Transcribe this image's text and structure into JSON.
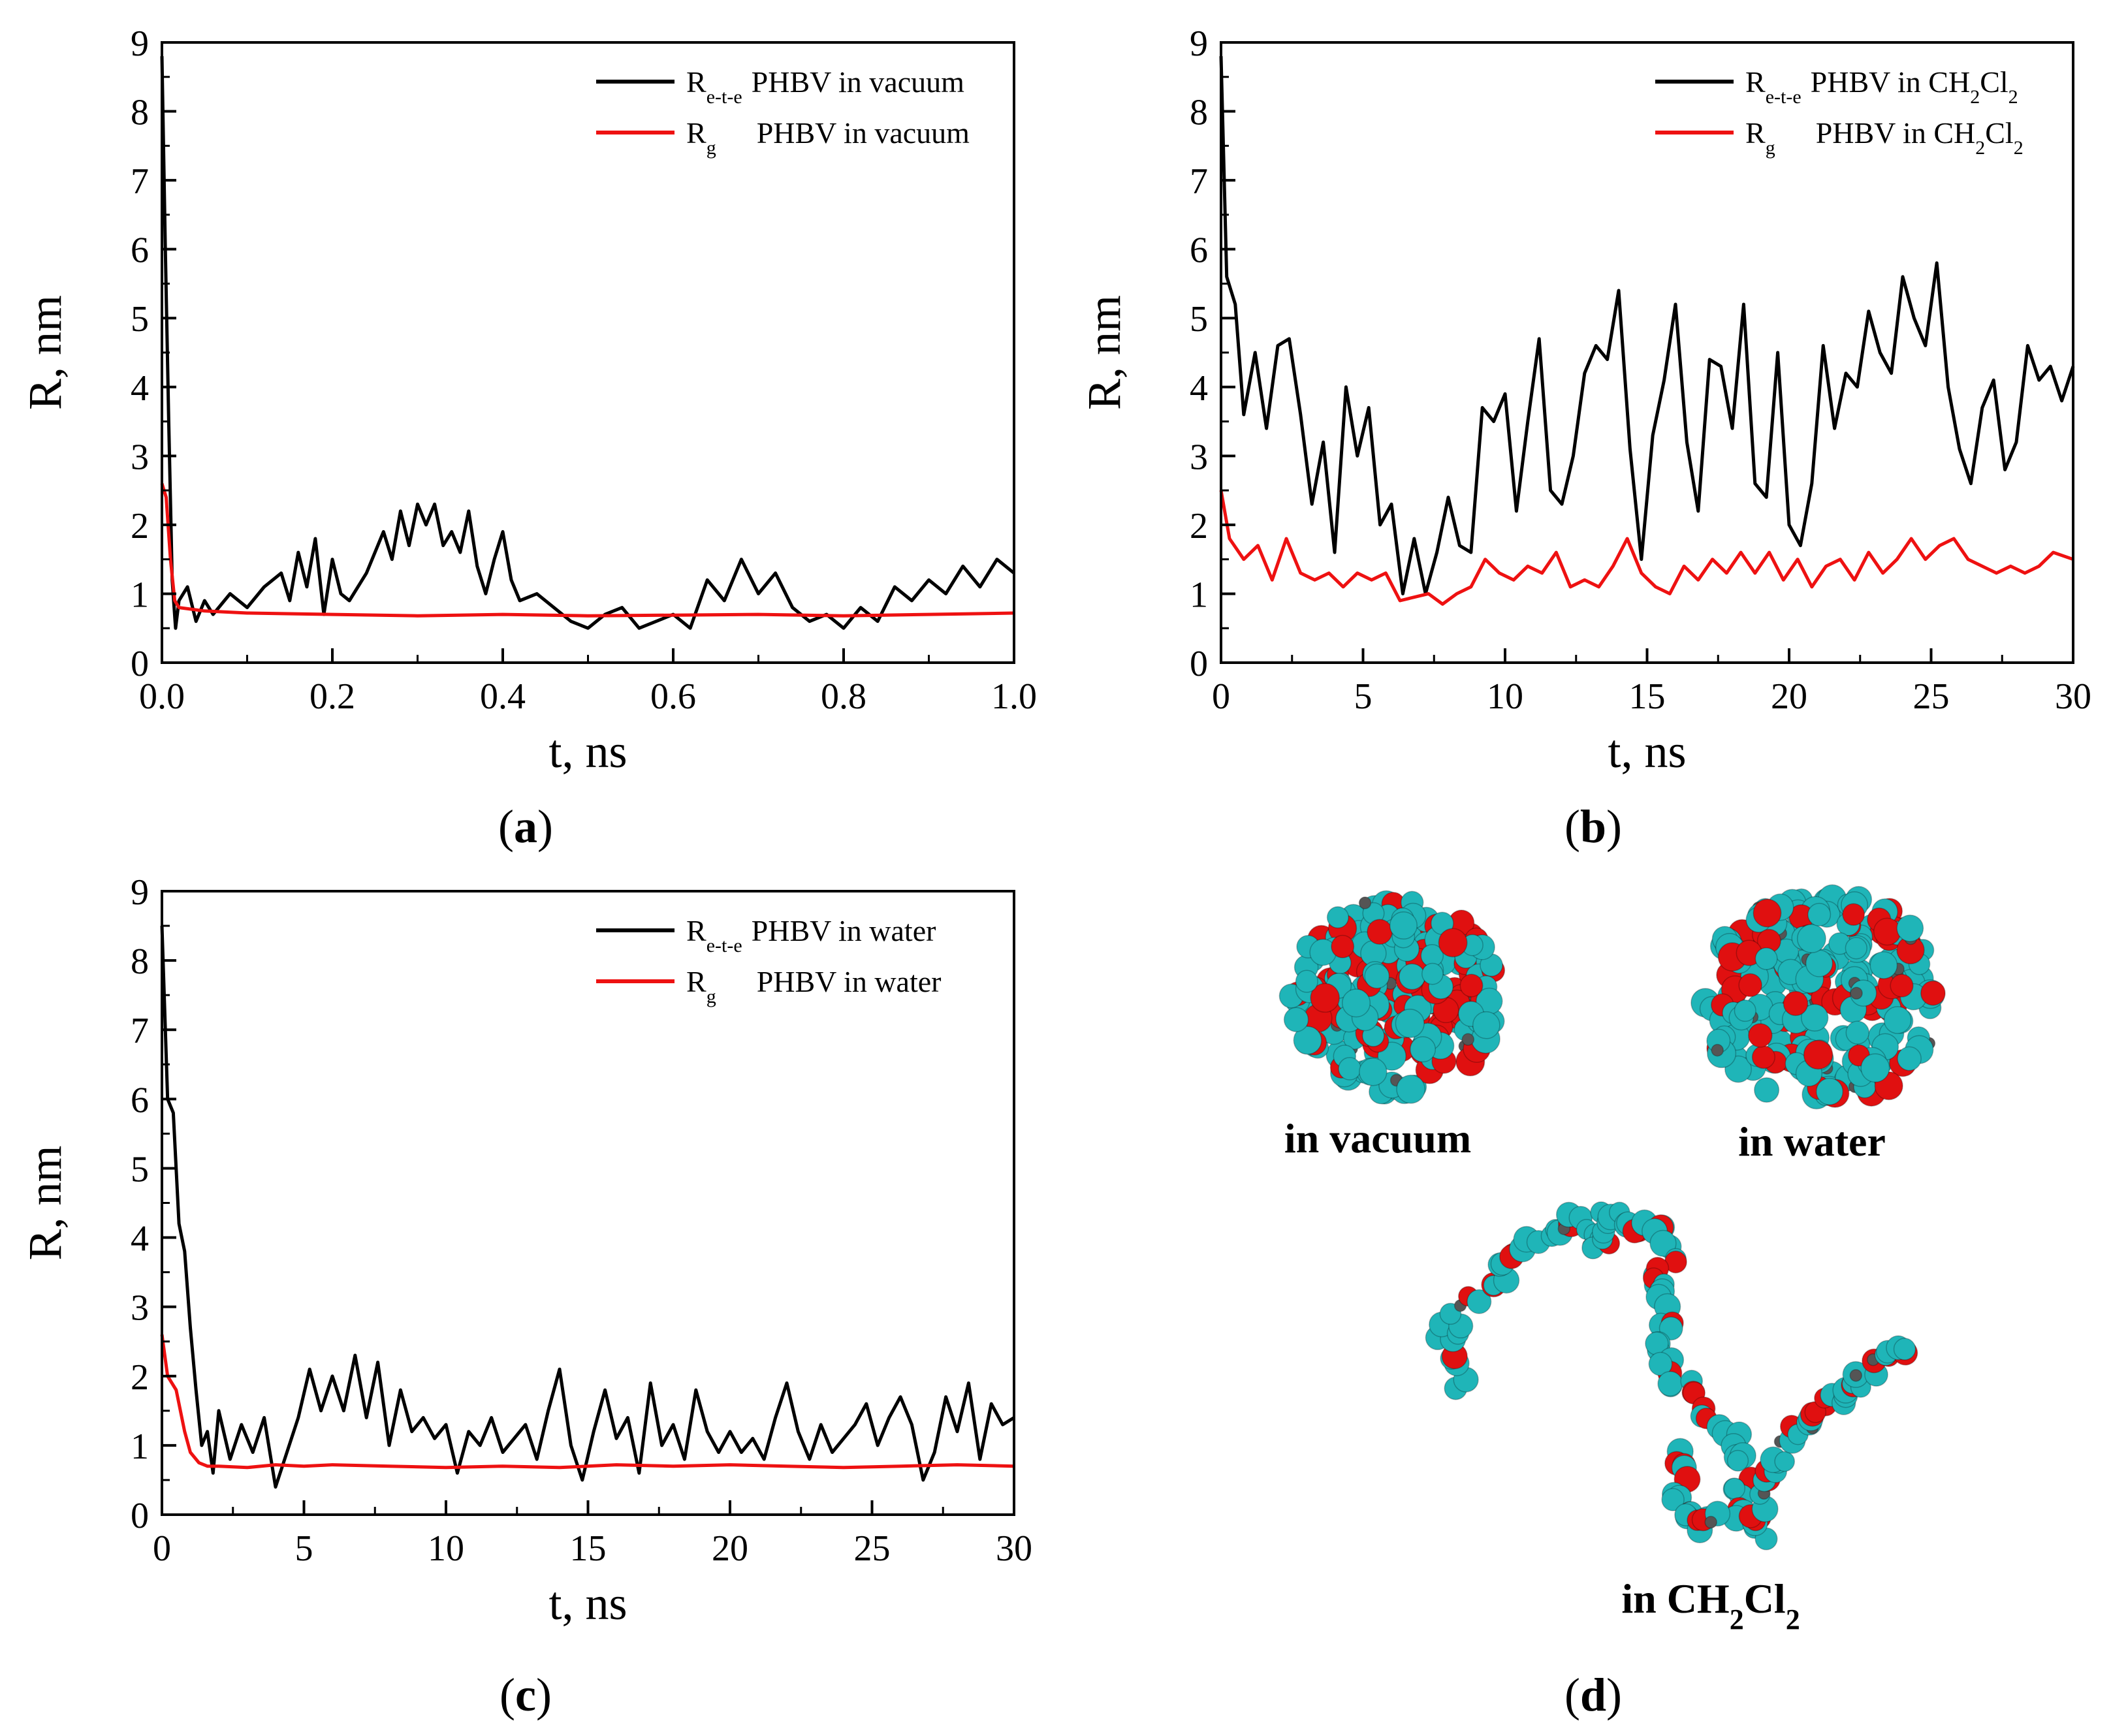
{
  "panels": [
    {
      "id": "a",
      "label": "(a)",
      "label_letter": "a"
    },
    {
      "id": "b",
      "label": "(b)",
      "label_letter": "b"
    },
    {
      "id": "c",
      "label": "(c)",
      "label_letter": "c"
    },
    {
      "id": "d",
      "label": "(d)",
      "label_letter": "d"
    }
  ],
  "colors": {
    "ete": "#000000",
    "rg": "#ee1111",
    "axis": "#000000"
  },
  "chart_data": [
    {
      "panel": "a",
      "type": "line",
      "xlabel": "t, ns",
      "ylabel": "R, nm",
      "xlim": [
        0.0,
        1.0
      ],
      "ylim": [
        0,
        9
      ],
      "xticks": [
        "0.0",
        "0.2",
        "0.4",
        "0.6",
        "0.8",
        "1.0"
      ],
      "yticks": [
        "0",
        "1",
        "2",
        "3",
        "4",
        "5",
        "6",
        "7",
        "8",
        "9"
      ],
      "legend_position": "top-right",
      "series": [
        {
          "name": "R",
          "sub": "e-t-e",
          "suffix": "PHBV in vacuum",
          "color": "#000000",
          "x": [
            0,
            0.004,
            0.008,
            0.012,
            0.016,
            0.02,
            0.03,
            0.04,
            0.05,
            0.06,
            0.08,
            0.1,
            0.12,
            0.14,
            0.15,
            0.16,
            0.17,
            0.18,
            0.19,
            0.2,
            0.21,
            0.22,
            0.24,
            0.26,
            0.27,
            0.28,
            0.29,
            0.3,
            0.31,
            0.32,
            0.33,
            0.34,
            0.35,
            0.36,
            0.37,
            0.38,
            0.39,
            0.4,
            0.41,
            0.42,
            0.44,
            0.46,
            0.48,
            0.5,
            0.52,
            0.54,
            0.56,
            0.58,
            0.6,
            0.62,
            0.64,
            0.66,
            0.68,
            0.7,
            0.72,
            0.74,
            0.76,
            0.78,
            0.8,
            0.82,
            0.84,
            0.86,
            0.88,
            0.9,
            0.92,
            0.94,
            0.96,
            0.98,
            1.0
          ],
          "y": [
            8.8,
            6.0,
            3.5,
            1.2,
            0.5,
            0.9,
            1.1,
            0.6,
            0.9,
            0.7,
            1.0,
            0.8,
            1.1,
            1.3,
            0.9,
            1.6,
            1.1,
            1.8,
            0.7,
            1.5,
            1.0,
            0.9,
            1.3,
            1.9,
            1.5,
            2.2,
            1.7,
            2.3,
            2.0,
            2.3,
            1.7,
            1.9,
            1.6,
            2.2,
            1.4,
            1.0,
            1.5,
            1.9,
            1.2,
            0.9,
            1.0,
            0.8,
            0.6,
            0.5,
            0.7,
            0.8,
            0.5,
            0.6,
            0.7,
            0.5,
            1.2,
            0.9,
            1.5,
            1.0,
            1.3,
            0.8,
            0.6,
            0.7,
            0.5,
            0.8,
            0.6,
            1.1,
            0.9,
            1.2,
            1.0,
            1.4,
            1.1,
            1.5,
            1.3
          ]
        },
        {
          "name": "R",
          "sub": "g",
          "suffix": "PHBV in vacuum",
          "color": "#ee1111",
          "x": [
            0,
            0.005,
            0.01,
            0.015,
            0.02,
            0.05,
            0.1,
            0.2,
            0.3,
            0.4,
            0.5,
            0.6,
            0.7,
            0.8,
            0.9,
            1.0
          ],
          "y": [
            2.6,
            2.4,
            1.5,
            0.9,
            0.8,
            0.75,
            0.72,
            0.7,
            0.68,
            0.7,
            0.68,
            0.69,
            0.7,
            0.68,
            0.7,
            0.72
          ]
        }
      ]
    },
    {
      "panel": "b",
      "type": "line",
      "xlabel": "t, ns",
      "ylabel": "R, nm",
      "xlim": [
        0,
        30
      ],
      "ylim": [
        0,
        9
      ],
      "xticks": [
        "0",
        "5",
        "10",
        "15",
        "20",
        "25",
        "30"
      ],
      "yticks": [
        "0",
        "1",
        "2",
        "3",
        "4",
        "5",
        "6",
        "7",
        "8",
        "9"
      ],
      "legend_position": "top-right",
      "series": [
        {
          "name": "R",
          "sub": "e-t-e",
          "suffix": "PHBV in CH2Cl2",
          "suffix_parts": [
            "PHBV in CH",
            "2",
            "Cl",
            "2"
          ],
          "color": "#000000",
          "x": [
            0,
            0.2,
            0.5,
            0.8,
            1.2,
            1.6,
            2.0,
            2.4,
            2.8,
            3.2,
            3.6,
            4.0,
            4.4,
            4.8,
            5.2,
            5.6,
            6.0,
            6.4,
            6.8,
            7.2,
            7.6,
            8.0,
            8.4,
            8.8,
            9.2,
            9.6,
            10.0,
            10.4,
            10.8,
            11.2,
            11.6,
            12.0,
            12.4,
            12.8,
            13.2,
            13.6,
            14.0,
            14.4,
            14.8,
            15.2,
            15.6,
            16.0,
            16.4,
            16.8,
            17.2,
            17.6,
            18.0,
            18.4,
            18.8,
            19.2,
            19.6,
            20.0,
            20.4,
            20.8,
            21.2,
            21.6,
            22.0,
            22.4,
            22.8,
            23.2,
            23.6,
            24.0,
            24.4,
            24.8,
            25.2,
            25.6,
            26.0,
            26.4,
            26.8,
            27.2,
            27.6,
            28.0,
            28.4,
            28.8,
            29.2,
            29.6,
            30.0
          ],
          "y": [
            8.8,
            5.6,
            5.2,
            3.6,
            4.5,
            3.4,
            4.6,
            4.7,
            3.6,
            2.3,
            3.2,
            1.6,
            4.0,
            3.0,
            3.7,
            2.0,
            2.3,
            1.0,
            1.8,
            1.0,
            1.6,
            2.4,
            1.7,
            1.6,
            3.7,
            3.5,
            3.9,
            2.2,
            3.5,
            4.7,
            2.5,
            2.3,
            3.0,
            4.2,
            4.6,
            4.4,
            5.4,
            3.1,
            1.5,
            3.3,
            4.1,
            5.2,
            3.2,
            2.2,
            4.4,
            4.3,
            3.4,
            5.2,
            2.6,
            2.4,
            4.5,
            2.0,
            1.7,
            2.6,
            4.6,
            3.4,
            4.2,
            4.0,
            5.1,
            4.5,
            4.2,
            5.6,
            5.0,
            4.6,
            5.8,
            4.0,
            3.1,
            2.6,
            3.7,
            4.1,
            2.8,
            3.2,
            4.6,
            4.1,
            4.3,
            3.8,
            4.3
          ]
        },
        {
          "name": "R",
          "sub": "g",
          "suffix": "PHBV in CH2Cl2",
          "suffix_parts": [
            "PHBV in CH",
            "2",
            "Cl",
            "2"
          ],
          "color": "#ee1111",
          "x": [
            0,
            0.3,
            0.8,
            1.3,
            1.8,
            2.3,
            2.8,
            3.3,
            3.8,
            4.3,
            4.8,
            5.3,
            5.8,
            6.3,
            6.8,
            7.3,
            7.8,
            8.3,
            8.8,
            9.3,
            9.8,
            10.3,
            10.8,
            11.3,
            11.8,
            12.3,
            12.8,
            13.3,
            13.8,
            14.3,
            14.8,
            15.3,
            15.8,
            16.3,
            16.8,
            17.3,
            17.8,
            18.3,
            18.8,
            19.3,
            19.8,
            20.3,
            20.8,
            21.3,
            21.8,
            22.3,
            22.8,
            23.3,
            23.8,
            24.3,
            24.8,
            25.3,
            25.8,
            26.3,
            26.8,
            27.3,
            27.8,
            28.3,
            28.8,
            29.3,
            30.0
          ],
          "y": [
            2.5,
            1.8,
            1.5,
            1.7,
            1.2,
            1.8,
            1.3,
            1.2,
            1.3,
            1.1,
            1.3,
            1.2,
            1.3,
            0.9,
            0.95,
            1.0,
            0.85,
            1.0,
            1.1,
            1.5,
            1.3,
            1.2,
            1.4,
            1.3,
            1.6,
            1.1,
            1.2,
            1.1,
            1.4,
            1.8,
            1.3,
            1.1,
            1.0,
            1.4,
            1.2,
            1.5,
            1.3,
            1.6,
            1.3,
            1.6,
            1.2,
            1.5,
            1.1,
            1.4,
            1.5,
            1.2,
            1.6,
            1.3,
            1.5,
            1.8,
            1.5,
            1.7,
            1.8,
            1.5,
            1.4,
            1.3,
            1.4,
            1.3,
            1.4,
            1.6,
            1.5
          ]
        }
      ]
    },
    {
      "panel": "c",
      "type": "line",
      "xlabel": "t, ns",
      "ylabel": "R, nm",
      "xlim": [
        0,
        30
      ],
      "ylim": [
        0,
        9
      ],
      "xticks": [
        "0",
        "5",
        "10",
        "15",
        "20",
        "25",
        "30"
      ],
      "yticks": [
        "0",
        "1",
        "2",
        "3",
        "4",
        "5",
        "6",
        "7",
        "8",
        "9"
      ],
      "legend_position": "top-right",
      "series": [
        {
          "name": "R",
          "sub": "e-t-e",
          "suffix": "PHBV in water",
          "color": "#000000",
          "x": [
            0,
            0.2,
            0.4,
            0.6,
            0.8,
            1.0,
            1.2,
            1.4,
            1.6,
            1.8,
            2.0,
            2.4,
            2.8,
            3.2,
            3.6,
            4.0,
            4.4,
            4.8,
            5.2,
            5.6,
            6.0,
            6.4,
            6.8,
            7.2,
            7.6,
            8.0,
            8.4,
            8.8,
            9.2,
            9.6,
            10.0,
            10.4,
            10.8,
            11.2,
            11.6,
            12.0,
            12.4,
            12.8,
            13.2,
            13.6,
            14.0,
            14.4,
            14.8,
            15.2,
            15.6,
            16.0,
            16.4,
            16.8,
            17.2,
            17.6,
            18.0,
            18.4,
            18.8,
            19.2,
            19.6,
            20.0,
            20.4,
            20.8,
            21.2,
            21.6,
            22.0,
            22.4,
            22.8,
            23.2,
            23.6,
            24.0,
            24.4,
            24.8,
            25.2,
            25.6,
            26.0,
            26.4,
            26.8,
            27.2,
            27.6,
            28.0,
            28.4,
            28.8,
            29.2,
            29.6,
            30.0
          ],
          "y": [
            8.5,
            6.0,
            5.8,
            4.2,
            3.8,
            2.7,
            1.8,
            1.0,
            1.2,
            0.6,
            1.5,
            0.8,
            1.3,
            0.9,
            1.4,
            0.4,
            0.9,
            1.4,
            2.1,
            1.5,
            2.0,
            1.5,
            2.3,
            1.4,
            2.2,
            1.0,
            1.8,
            1.2,
            1.4,
            1.1,
            1.3,
            0.6,
            1.2,
            1.0,
            1.4,
            0.9,
            1.1,
            1.3,
            0.8,
            1.5,
            2.1,
            1.0,
            0.5,
            1.2,
            1.8,
            1.1,
            1.4,
            0.6,
            1.9,
            1.0,
            1.3,
            0.8,
            1.8,
            1.2,
            0.9,
            1.2,
            0.9,
            1.1,
            0.8,
            1.4,
            1.9,
            1.2,
            0.8,
            1.3,
            0.9,
            1.1,
            1.3,
            1.6,
            1.0,
            1.4,
            1.7,
            1.3,
            0.5,
            0.9,
            1.7,
            1.2,
            1.9,
            0.8,
            1.6,
            1.3,
            1.4
          ]
        },
        {
          "name": "R",
          "sub": "g",
          "suffix": "PHBV in water",
          "color": "#ee1111",
          "x": [
            0,
            0.2,
            0.5,
            0.8,
            1.0,
            1.3,
            1.6,
            2.0,
            3.0,
            4.0,
            5.0,
            6.0,
            8.0,
            10.0,
            12.0,
            14.0,
            16.0,
            18.0,
            20.0,
            22.0,
            24.0,
            26.0,
            28.0,
            30.0
          ],
          "y": [
            2.6,
            2.0,
            1.8,
            1.2,
            0.9,
            0.75,
            0.7,
            0.7,
            0.68,
            0.72,
            0.7,
            0.72,
            0.7,
            0.68,
            0.7,
            0.68,
            0.72,
            0.7,
            0.72,
            0.7,
            0.68,
            0.7,
            0.72,
            0.7
          ]
        }
      ]
    }
  ],
  "illustration": {
    "labels": {
      "vacuum": "in vacuum",
      "water": "in water",
      "ch2cl2_prefix": "in CH",
      "ch2cl2_sub1": "2",
      "ch2cl2_mid": "Cl",
      "ch2cl2_sub2": "2"
    },
    "atom_colors": {
      "carbon": "#1fb5b8",
      "oxygen": "#e01010",
      "hydrogen": "#555555"
    }
  }
}
